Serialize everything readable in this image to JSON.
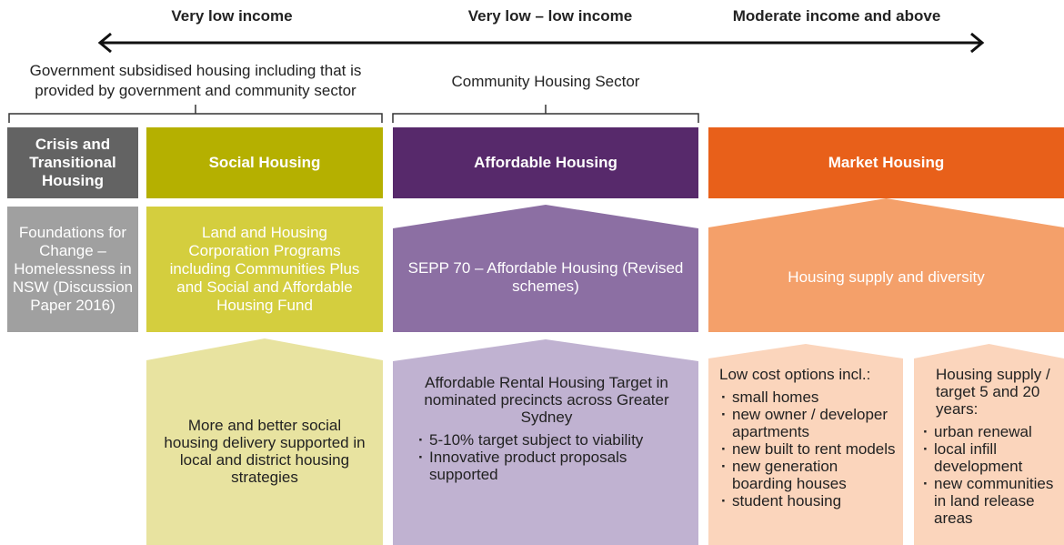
{
  "spectrum": [
    "Very low income",
    "Very low – low income",
    "Moderate income and above"
  ],
  "groups": [
    "Government subsidised housing including that is provided by government and community sector",
    "Community Housing Sector"
  ],
  "columns": [
    {
      "header": "Crisis and Transitional Housing",
      "program": "Foundations for Change – Homelessness in NSW (Discussion Paper 2016)"
    },
    {
      "header": "Social Housing",
      "program": "Land and Housing Corporation Programs including Communities Plus and Social and Affordable Housing Fund",
      "outcomes": [
        {
          "text": "More and better social housing delivery supported in local and district housing strategies"
        }
      ]
    },
    {
      "header": "Affordable Housing",
      "program": "SEPP 70 – Affordable Housing (Revised schemes)",
      "outcomes": [
        {
          "text": "Affordable Rental Housing Target in nominated precincts across Greater Sydney",
          "bullets": [
            "5-10% target subject to viability",
            "Innovative product proposals supported"
          ]
        }
      ]
    },
    {
      "header": "Market Housing",
      "program": "Housing supply and diversity",
      "outcomes": [
        {
          "text": "Low cost options incl.:",
          "bullets": [
            "small homes",
            "new owner / developer apartments",
            "new built to rent models",
            "new generation boarding houses",
            "student housing"
          ]
        },
        {
          "text": "Housing supply / target 5 and 20 years:",
          "bullets": [
            "urban renewal",
            "local infill development",
            "new communities in land release areas"
          ]
        }
      ]
    }
  ]
}
